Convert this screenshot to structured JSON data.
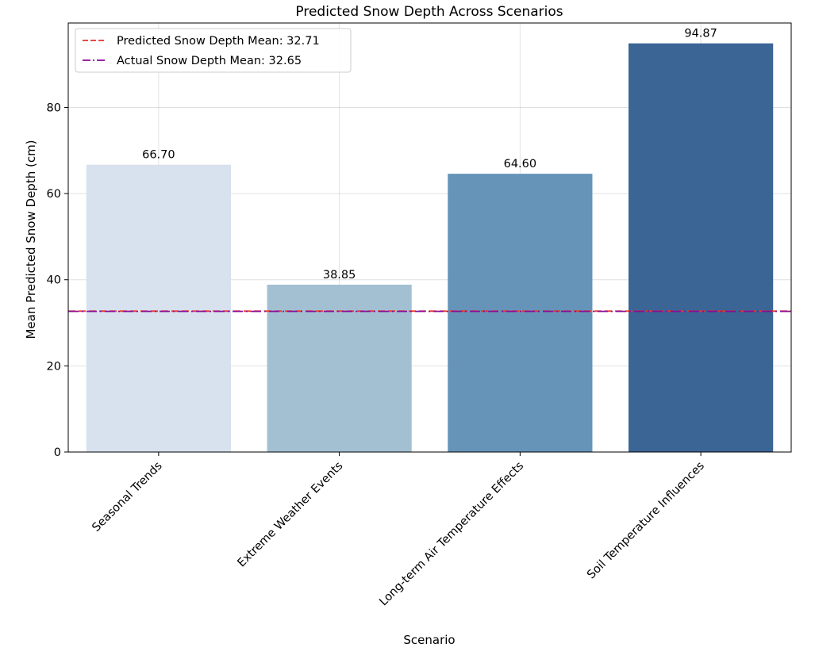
{
  "chart_data": {
    "type": "bar",
    "title": "Predicted Snow Depth Across Scenarios",
    "xlabel": "Scenario",
    "ylabel": "Mean Predicted Snow Depth (cm)",
    "categories": [
      "Seasonal Trends",
      "Extreme Weather Events",
      "Long-term Air Temperature Effects",
      "Soil Temperature Influences"
    ],
    "values": [
      66.7,
      38.85,
      64.6,
      94.87
    ],
    "value_labels": [
      "66.70",
      "38.85",
      "64.60",
      "94.87"
    ],
    "bar_colors": [
      "#d8e1ee",
      "#a3c0d3",
      "#6694b8",
      "#3a6595"
    ],
    "ylim": [
      0,
      99.6
    ],
    "yticks": [
      0,
      20,
      40,
      60,
      80
    ],
    "grid": true,
    "reference_lines": [
      {
        "label": "Predicted Snow Depth Mean: 32.71",
        "value": 32.71,
        "color": "#e8322a",
        "style": "dashed"
      },
      {
        "label": "Actual Snow Depth Mean: 32.65",
        "value": 32.65,
        "color": "#8a0a96",
        "style": "dashdot"
      }
    ],
    "legend_position": "top-left",
    "xtick_rotation": 45
  }
}
